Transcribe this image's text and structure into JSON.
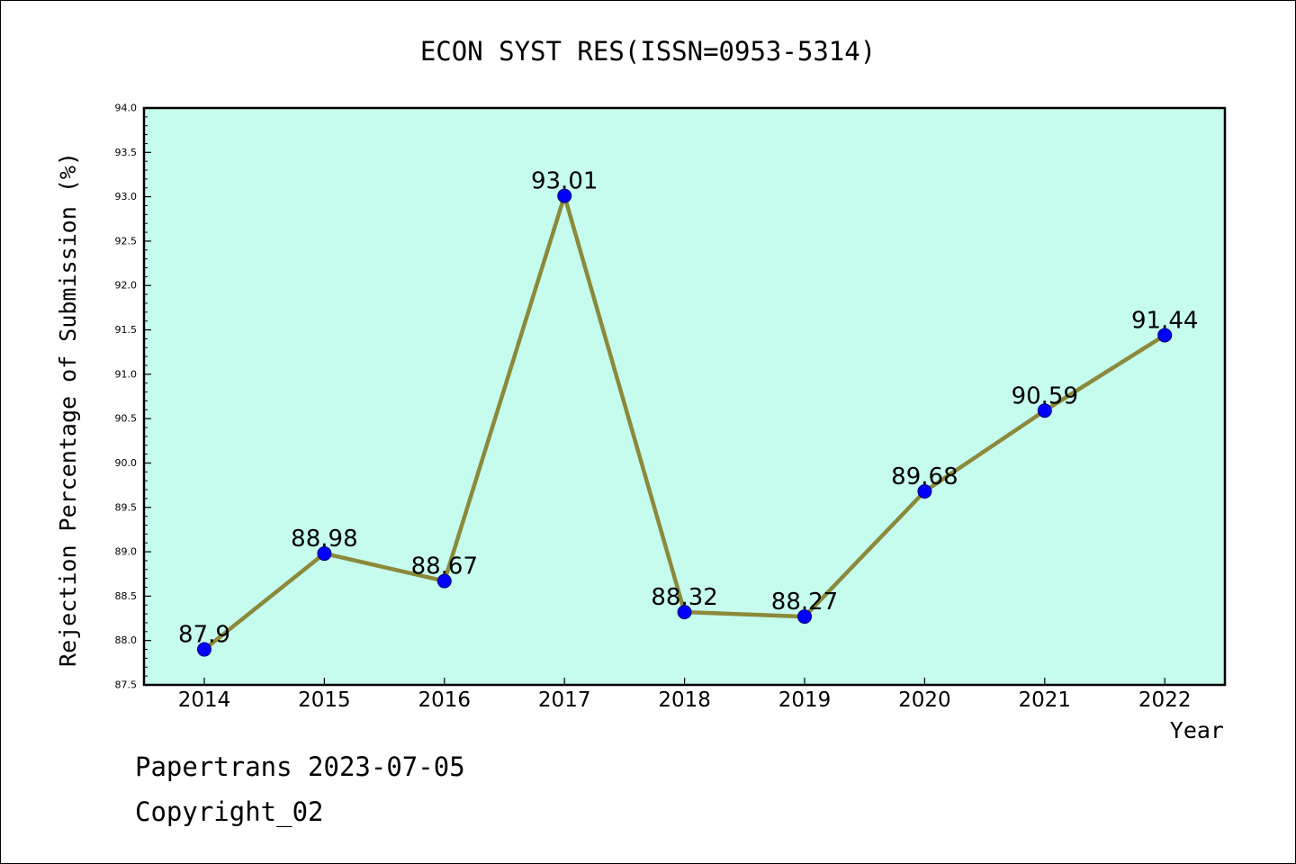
{
  "chart_data": {
    "type": "line",
    "title": "ECON SYST RES(ISSN=0953-5314)",
    "xlabel": "Year",
    "ylabel": "Rejection Percentage of Submission (%)",
    "categories": [
      "2014",
      "2015",
      "2016",
      "2017",
      "2018",
      "2019",
      "2020",
      "2021",
      "2022"
    ],
    "series": [
      {
        "values": [
          87.9,
          88.98,
          88.67,
          93.01,
          88.32,
          88.27,
          89.68,
          90.59,
          91.44
        ],
        "data_labels": [
          "87.9",
          "88.98",
          "88.67",
          "93.01",
          "88.32",
          "88.27",
          "89.68",
          "90.59",
          "91.44"
        ]
      }
    ],
    "ylim": [
      87.5,
      94.0
    ],
    "yticks": [
      "87.5",
      "88.0",
      "88.5",
      "89.0",
      "89.5",
      "90.0",
      "90.5",
      "91.0",
      "91.5",
      "92.0",
      "92.5",
      "93.0",
      "93.5",
      "94.0"
    ],
    "grid": false,
    "colors": {
      "plot_background": "#c6fcee",
      "line": "#8b8a3a",
      "marker": "#0000ff",
      "axis": "#000000"
    }
  },
  "footer": {
    "line1": "Papertrans 2023-07-05",
    "line2": "Copyright_02"
  }
}
